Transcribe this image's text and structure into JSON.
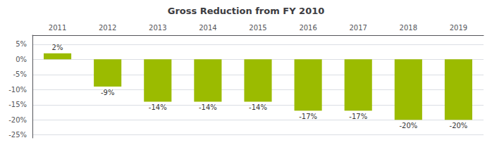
{
  "chart_data": {
    "type": "bar",
    "title": "Gross Reduction from FY 2010",
    "categories": [
      "2011",
      "2012",
      "2013",
      "2014",
      "2015",
      "2016",
      "2017",
      "2018",
      "2019"
    ],
    "values": [
      2,
      -9,
      -14,
      -14,
      -14,
      -17,
      -17,
      -20,
      -20
    ],
    "value_labels": [
      "2%",
      "-9%",
      "-14%",
      "-14%",
      "-14%",
      "-17%",
      "-17%",
      "-20%",
      "-20%"
    ],
    "color": "#9BBB00",
    "ylim": [
      -26,
      8
    ],
    "yticks": [
      {
        "value": 5,
        "label": "5%"
      },
      {
        "value": 0,
        "label": "0%"
      },
      {
        "value": -5,
        "label": "-5%"
      },
      {
        "value": -10,
        "label": "-10%"
      },
      {
        "value": -15,
        "label": "-15%"
      },
      {
        "value": -20,
        "label": "-20%"
      },
      {
        "value": -25,
        "label": "-25%"
      }
    ],
    "grid": true,
    "data_labels": true
  }
}
